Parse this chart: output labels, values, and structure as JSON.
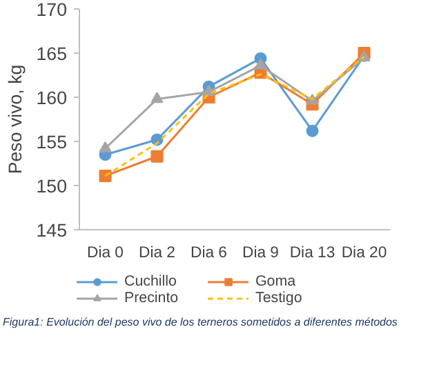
{
  "chart_data": {
    "type": "line",
    "ylabel": "Peso vivo, kg",
    "categories": [
      "Dia 0",
      "Dia 2",
      "Dia 6",
      "Dia 9",
      "Dia 13",
      "Dia 20"
    ],
    "series": [
      {
        "name": "Cuchillo",
        "color": "#5b9bd5",
        "marker": "circle",
        "line_style": "solid",
        "values": [
          153.5,
          155.2,
          161.2,
          164.4,
          156.2,
          164.7
        ]
      },
      {
        "name": "Goma",
        "color": "#ed7d31",
        "marker": "square",
        "line_style": "solid",
        "values": [
          151.1,
          153.3,
          160.0,
          162.8,
          159.2,
          165.0
        ]
      },
      {
        "name": "Precinto",
        "color": "#a5a5a5",
        "marker": "triangle",
        "line_style": "solid",
        "values": [
          154.2,
          159.8,
          160.6,
          163.6,
          159.6,
          164.5
        ]
      },
      {
        "name": "Testigo",
        "color": "#ffc000",
        "marker": "none",
        "line_style": "dashed",
        "values": [
          151.1,
          154.8,
          160.4,
          162.6,
          159.8,
          164.6
        ]
      }
    ],
    "ylim": [
      145,
      170
    ],
    "yticks": [
      145,
      150,
      155,
      160,
      165,
      170
    ],
    "grid": false,
    "legend": "bottom",
    "annotations": [
      "Figura1: Evolución del peso vivo de los terneros sometidos a diferentes métodos"
    ]
  }
}
